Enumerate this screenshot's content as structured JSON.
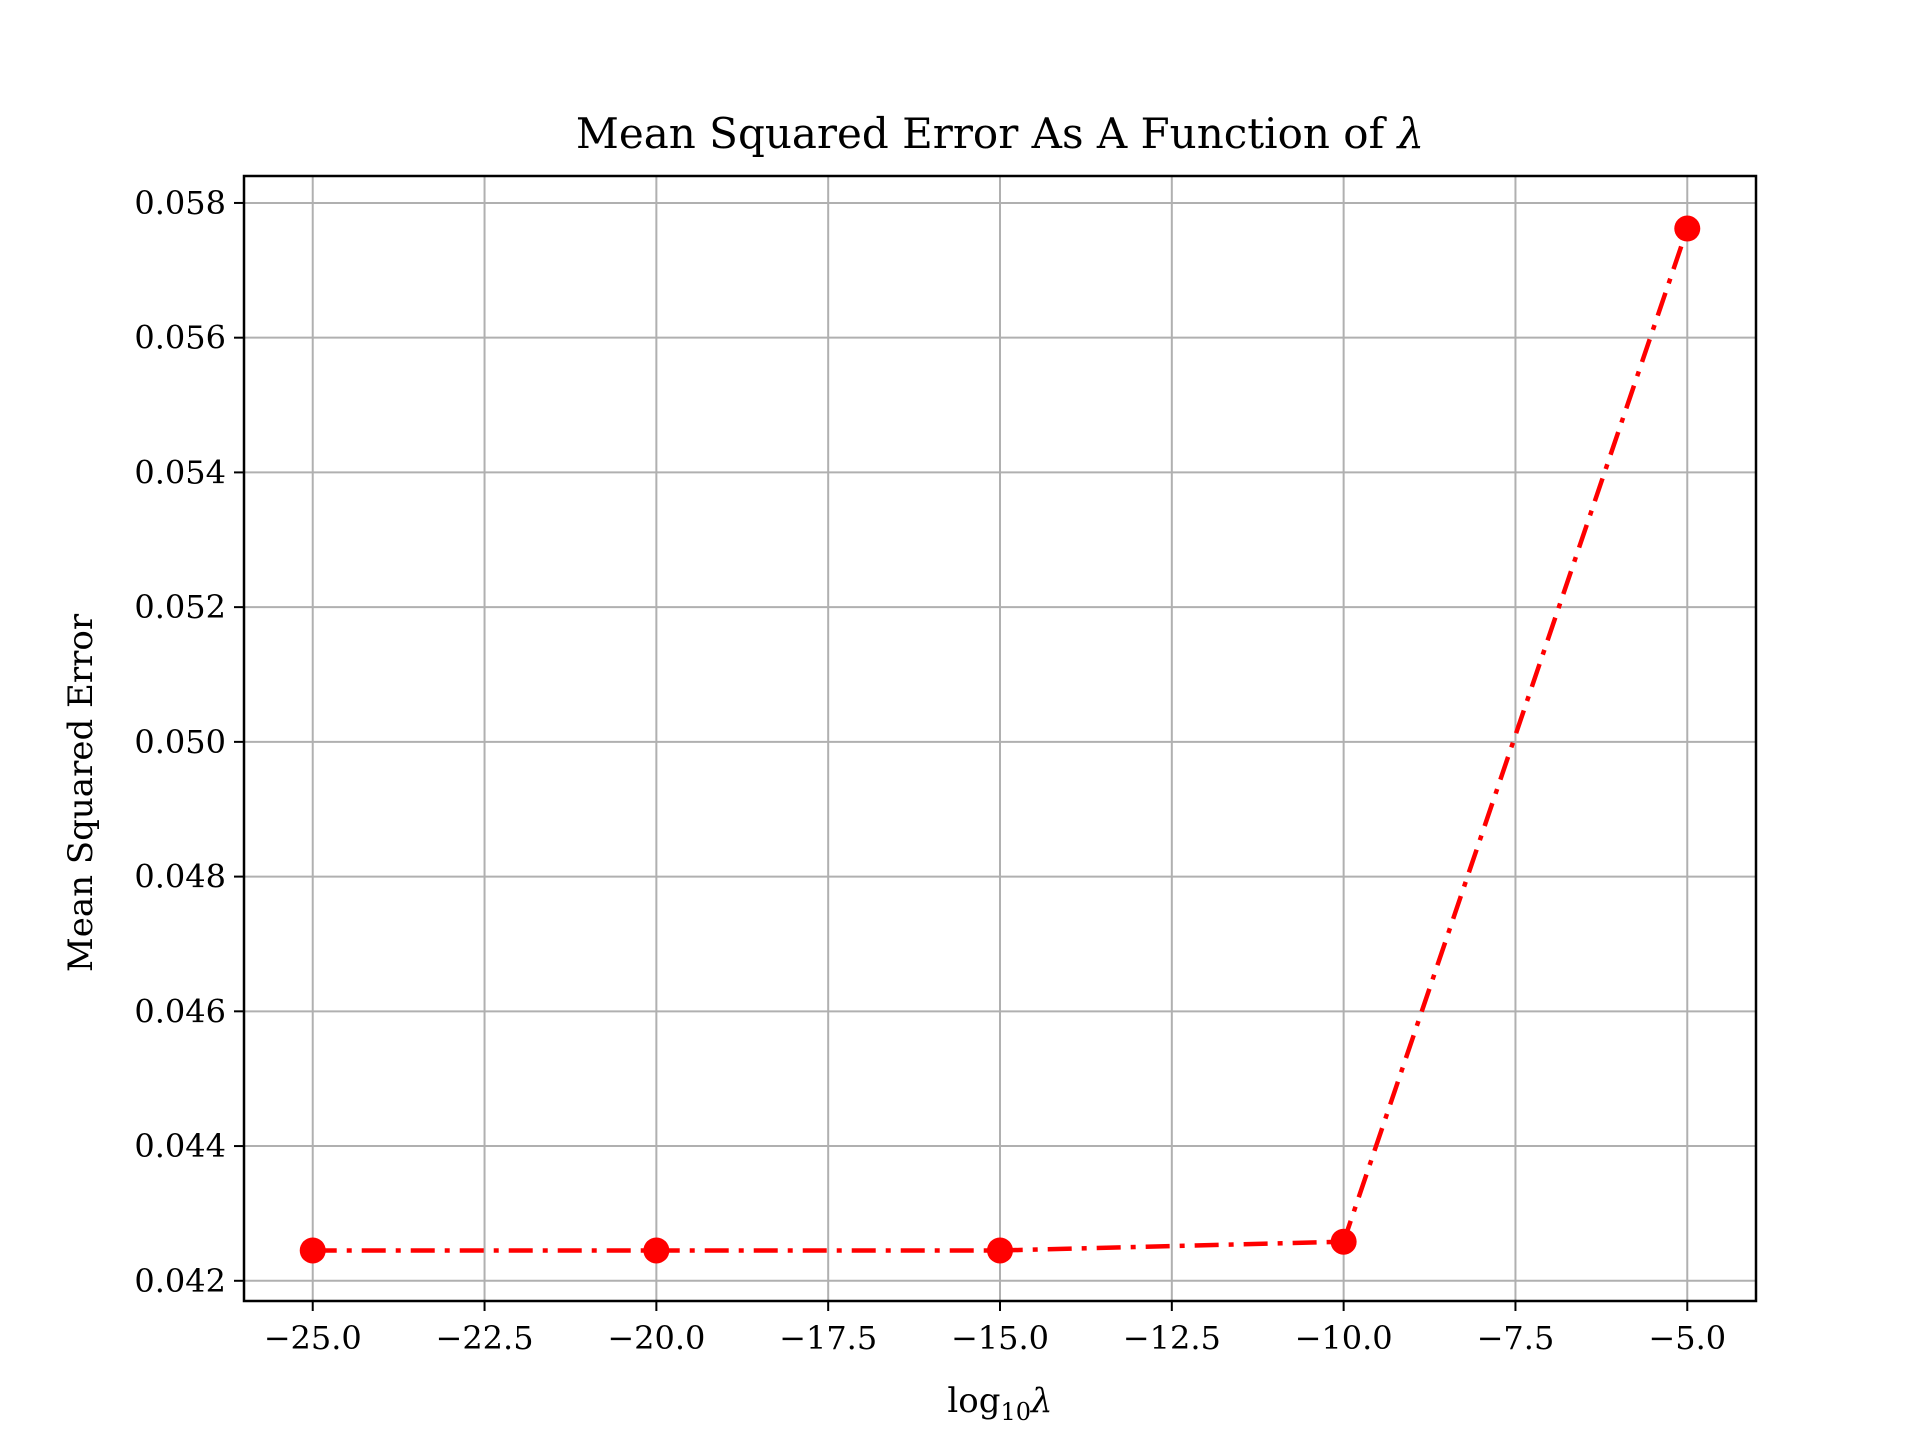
{
  "chart_data": {
    "type": "line",
    "title": "Mean Squared Error As A Function of λ",
    "xlabel": "log₁₀λ",
    "ylabel": "Mean Squared Error",
    "xlim": [
      -26.0,
      -4.0
    ],
    "ylim": [
      0.0417,
      0.0584
    ],
    "xticks": [
      -25.0,
      -22.5,
      -20.0,
      -17.5,
      -15.0,
      -12.5,
      -10.0,
      -7.5,
      -5.0
    ],
    "xtick_labels": [
      "−25.0",
      "−22.5",
      "−20.0",
      "−17.5",
      "−15.0",
      "−12.5",
      "−10.0",
      "−7.5",
      "−5.0"
    ],
    "yticks": [
      0.042,
      0.044,
      0.046,
      0.048,
      0.05,
      0.052,
      0.054,
      0.056,
      0.058
    ],
    "ytick_labels": [
      "0.042",
      "0.044",
      "0.046",
      "0.048",
      "0.050",
      "0.052",
      "0.054",
      "0.056",
      "0.058"
    ],
    "grid": true,
    "series": [
      {
        "x": [
          -25,
          -20,
          -15,
          -10,
          -5
        ],
        "y": [
          0.04245,
          0.04245,
          0.04245,
          0.04258,
          0.05762
        ],
        "color": "#ff0000",
        "line_style": "dash-dot",
        "marker": "circle"
      }
    ],
    "colors": {
      "series": "#ff0000",
      "grid": "#b0b0b0",
      "axes": "#000000"
    }
  }
}
